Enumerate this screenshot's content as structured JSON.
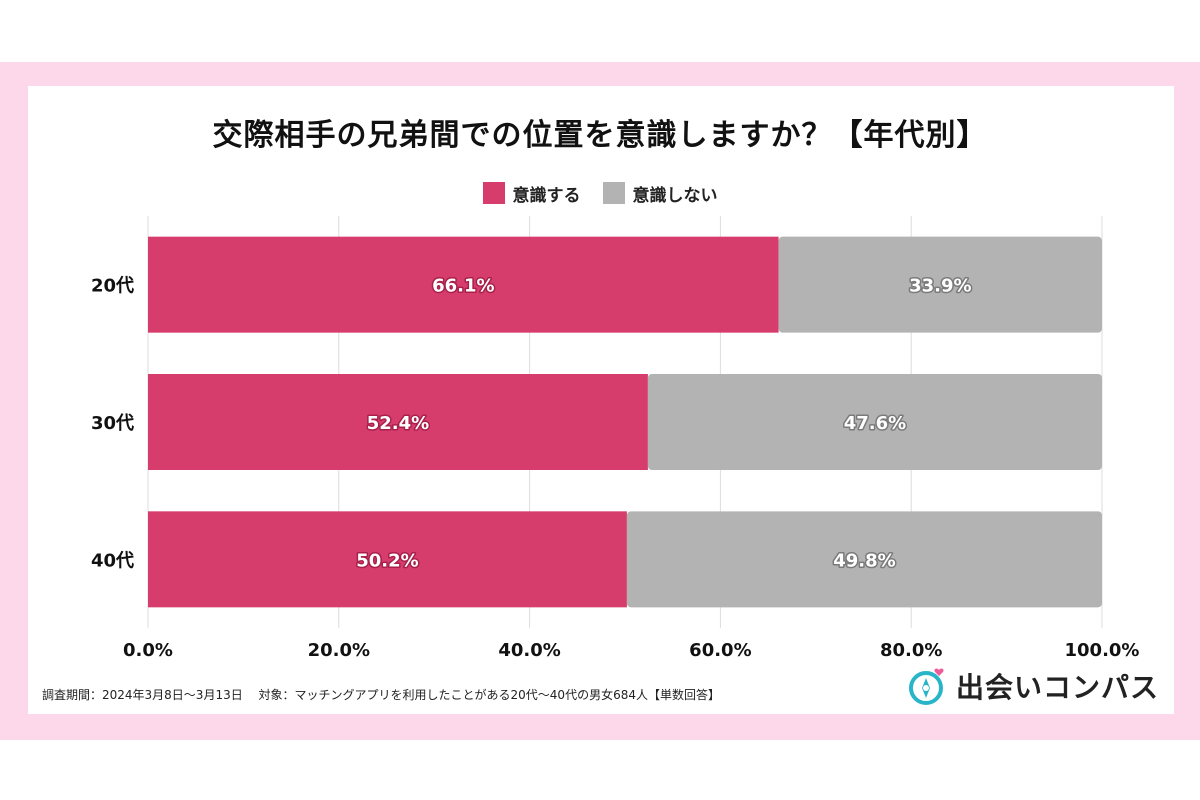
{
  "title": "交際相手の兄弟間での位置を意識しますか？【年代別】",
  "legend": [
    {
      "label": "意識する",
      "color": "#d73d6c"
    },
    {
      "label": "意識しない",
      "color": "#b3b3b3"
    }
  ],
  "chart_data": {
    "type": "bar",
    "orientation": "horizontal",
    "stacked": true,
    "categories": [
      "20代",
      "30代",
      "40代"
    ],
    "series": [
      {
        "name": "意識する",
        "values": [
          66.1,
          52.4,
          50.2
        ],
        "color": "#d73d6c",
        "labels": [
          "66.1%",
          "52.4%",
          "50.2%"
        ]
      },
      {
        "name": "意識しない",
        "values": [
          33.9,
          47.6,
          49.8
        ],
        "color": "#b3b3b3",
        "labels": [
          "33.9%",
          "47.6%",
          "49.8%"
        ]
      }
    ],
    "xlim": [
      0,
      100
    ],
    "xticks": [
      "0.0%",
      "20.0%",
      "40.0%",
      "60.0%",
      "80.0%",
      "100.0%"
    ],
    "grid": true,
    "legend_position": "top-center"
  },
  "footnote": "調査期間：2024年3月8日～3月13日　 対象：マッチングアプリを利用したことがある20代～40代の男女684人【単数回答】",
  "logo": {
    "text": "出会いコンパス",
    "icon": "compass-icon"
  }
}
